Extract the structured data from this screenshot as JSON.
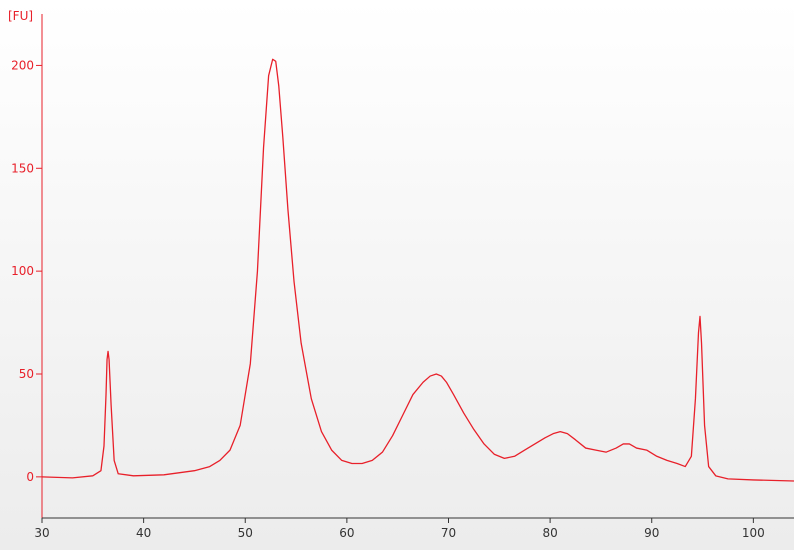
{
  "chart_data": {
    "type": "line",
    "title": "",
    "ylabel": "[FU]",
    "xlabel": "",
    "xlim": [
      30,
      104
    ],
    "ylim": [
      -20,
      225
    ],
    "x_ticks": [
      30,
      40,
      50,
      60,
      70,
      80,
      90,
      100
    ],
    "y_ticks": [
      0,
      50,
      100,
      150,
      200
    ],
    "grid": false,
    "legend": "none",
    "colors": {
      "trace": "#e8202a",
      "y_axis": "#e8202a",
      "x_axis": "#333333",
      "bg_top": "#ffffff",
      "bg_bottom": "#ececec"
    },
    "series": [
      {
        "x": [
          30,
          33,
          35,
          35.8,
          36.1,
          36.3,
          36.4,
          36.5,
          36.6,
          36.8,
          37.1,
          37.5,
          39,
          42,
          45,
          46.5,
          47.5,
          48.5,
          49.5,
          50.5,
          51.2,
          51.8,
          52.3,
          52.7,
          53,
          53.3,
          53.7,
          54.2,
          54.8,
          55.5,
          56.5,
          57.5,
          58.5,
          59.5,
          60.5,
          61.5,
          62.5,
          63.5,
          64.5,
          65.5,
          66.5,
          67.5,
          68.2,
          68.8,
          69.3,
          69.8,
          70.5,
          71.5,
          72.5,
          73.5,
          74.5,
          75.5,
          76.5,
          77.5,
          78.5,
          79.5,
          80.3,
          81,
          81.7,
          82.5,
          83.5,
          84.5,
          85.5,
          86.5,
          87.2,
          87.8,
          88.5,
          89.5,
          90.5,
          91.5,
          92.5,
          93.3,
          93.9,
          94.3,
          94.6,
          94.75,
          94.9,
          95.2,
          95.6,
          96.3,
          97.5,
          100,
          104
        ],
        "y": [
          0,
          -0.5,
          0.5,
          3,
          15,
          40,
          57,
          61,
          57,
          35,
          8,
          1.5,
          0.5,
          1,
          3,
          5,
          8,
          13,
          25,
          55,
          100,
          160,
          195,
          203,
          202,
          190,
          165,
          130,
          95,
          65,
          38,
          22,
          13,
          8,
          6.5,
          6.5,
          8,
          12,
          20,
          30,
          40,
          46,
          49,
          50,
          49,
          46,
          40,
          31,
          23,
          16,
          11,
          9,
          10,
          13,
          16,
          19,
          21,
          22,
          21,
          18,
          14,
          13,
          12,
          14,
          16,
          16,
          14,
          13,
          10,
          8,
          6.5,
          5,
          10,
          38,
          70,
          78,
          65,
          25,
          5,
          0.5,
          -1,
          -1.5,
          -2
        ]
      }
    ]
  }
}
